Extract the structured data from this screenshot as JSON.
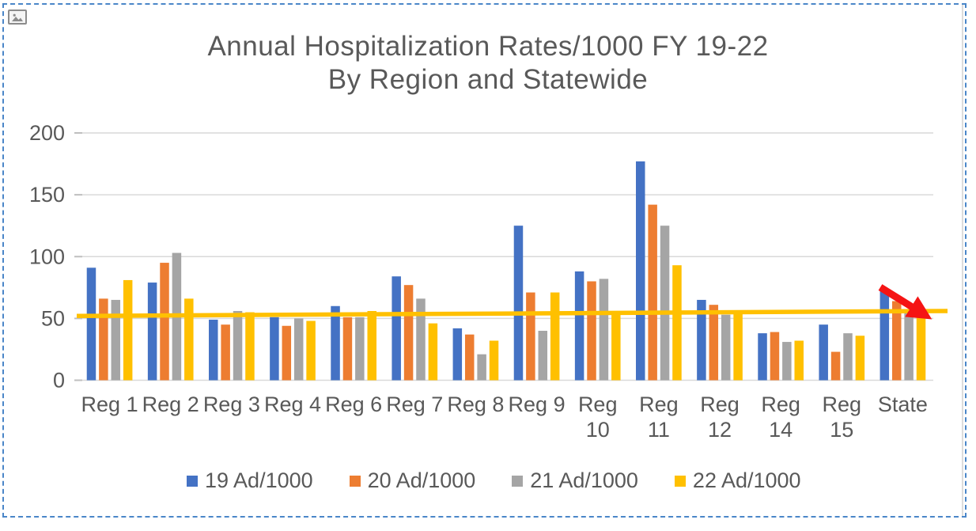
{
  "page": {
    "background_color": "#ffffff",
    "selection_border_color": "#4a86c8",
    "placeholder_icon": "picture-icon"
  },
  "chart_data": {
    "type": "bar",
    "title": "Annual Hospitalization Rates/1000 FY 19-22",
    "subtitle": "By Region and Statewide",
    "categories": [
      "Reg 1",
      "Reg 2",
      "Reg 3",
      "Reg 4",
      "Reg 6",
      "Reg 7",
      "Reg 8",
      "Reg 9",
      "Reg 10",
      "Reg 11",
      "Reg 12",
      "Reg 14",
      "Reg 15",
      "State"
    ],
    "series": [
      {
        "name": "19 Ad/1000",
        "color": "#4472C4",
        "values": [
          91,
          79,
          49,
          51,
          60,
          84,
          42,
          125,
          88,
          177,
          65,
          38,
          45,
          72
        ]
      },
      {
        "name": "20 Ad/1000",
        "color": "#ED7D31",
        "values": [
          66,
          95,
          45,
          44,
          51,
          77,
          37,
          71,
          80,
          142,
          61,
          39,
          23,
          64
        ]
      },
      {
        "name": "21 Ad/1000",
        "color": "#A5A5A5",
        "values": [
          65,
          103,
          56,
          50,
          51,
          66,
          21,
          40,
          82,
          125,
          53,
          31,
          38,
          57
        ]
      },
      {
        "name": "22 Ad/1000",
        "color": "#FFC000",
        "values": [
          81,
          66,
          55,
          48,
          56,
          46,
          32,
          71,
          56,
          93,
          54,
          32,
          36,
          54
        ]
      }
    ],
    "y_axis": {
      "min": 0,
      "max": 200,
      "ticks": [
        0,
        50,
        100,
        150,
        200
      ]
    },
    "trendline": {
      "series": "22 Ad/1000",
      "color": "#FFC000",
      "start_value": 52,
      "end_value": 56
    },
    "annotation_arrow": {
      "color": "#F51414",
      "meaning": "downward trend over State bars"
    },
    "legend_position": "bottom",
    "grid": true,
    "gridline_color": "#D9D9D9",
    "tick_color": "#BFBFBF",
    "text_color": "#595959"
  }
}
